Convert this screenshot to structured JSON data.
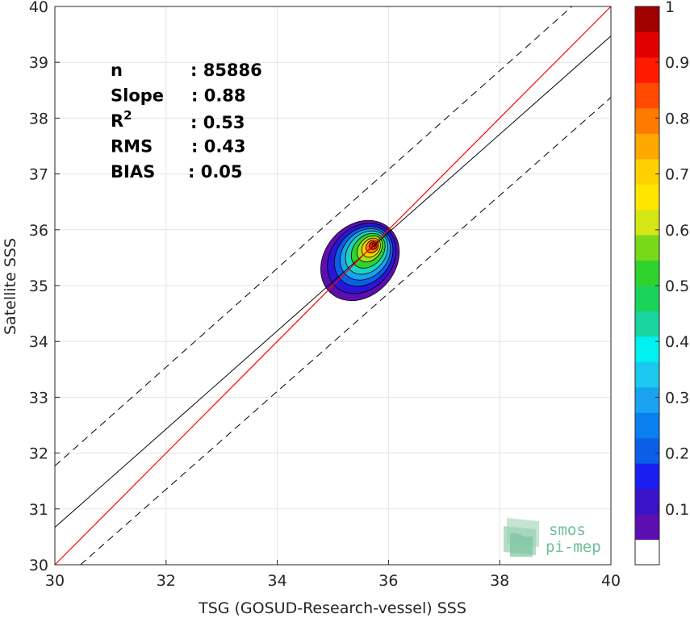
{
  "chart_data": {
    "type": "density-scatter",
    "xlabel": "TSG (GOSUD-Research-vessel) SSS",
    "ylabel": "Satellite SSS",
    "xlim": [
      30,
      40
    ],
    "ylim": [
      30,
      40
    ],
    "x_ticks": [
      "30",
      "32",
      "34",
      "36",
      "38",
      "40"
    ],
    "y_ticks": [
      "30",
      "31",
      "32",
      "33",
      "34",
      "35",
      "36",
      "37",
      "38",
      "39",
      "40"
    ],
    "grid": true,
    "stats": [
      {
        "label": "n",
        "value": ": 85886"
      },
      {
        "label": "Slope",
        "value": ": 0.88"
      },
      {
        "label": "R",
        "superscript": "2",
        "value": ": 0.53"
      },
      {
        "label": "RMS",
        "value": ": 0.43"
      },
      {
        "label": "BIAS",
        "value": ": 0.05"
      }
    ],
    "identity_line": {
      "color": "#ff0000",
      "from": [
        30,
        30
      ],
      "to": [
        40,
        40
      ]
    },
    "regression_line": {
      "color": "#000000",
      "from": [
        30,
        30.67
      ],
      "to": [
        40,
        39.47
      ]
    },
    "confidence_bounds": [
      {
        "style": "dashed",
        "from": [
          30,
          31.77
        ],
        "to": [
          39.3,
          40
        ]
      },
      {
        "style": "dashed",
        "from": [
          30.46,
          30
        ],
        "to": [
          40,
          38.37
        ]
      }
    ],
    "density_contours": {
      "center": [
        35.75,
        35.75
      ],
      "levels": [
        {
          "level": 0.05,
          "color": "#5b0fb0",
          "rx": 0.75,
          "ry": 0.55
        },
        {
          "level": 0.1,
          "color": "#2a14d8",
          "rx": 0.66,
          "ry": 0.48
        },
        {
          "level": 0.2,
          "color": "#0a5fe6",
          "rx": 0.56,
          "ry": 0.41
        },
        {
          "level": 0.3,
          "color": "#1aa3f0",
          "rx": 0.48,
          "ry": 0.35
        },
        {
          "level": 0.4,
          "color": "#1ad4c2",
          "rx": 0.41,
          "ry": 0.29
        },
        {
          "level": 0.5,
          "color": "#2ed32e",
          "rx": 0.33,
          "ry": 0.23
        },
        {
          "level": 0.6,
          "color": "#a7e214",
          "rx": 0.25,
          "ry": 0.17
        },
        {
          "level": 0.7,
          "color": "#ffd000",
          "rx": 0.18,
          "ry": 0.13
        },
        {
          "level": 0.8,
          "color": "#ff7a00",
          "rx": 0.12,
          "ry": 0.09
        },
        {
          "level": 0.9,
          "color": "#ff1a00",
          "rx": 0.07,
          "ry": 0.06
        },
        {
          "level": 1.0,
          "color": "#b00000",
          "rx": 0.03,
          "ry": 0.03
        }
      ]
    },
    "colorbar": {
      "range": [
        0,
        1
      ],
      "labels": [
        "1",
        "0.9",
        "0.8",
        "0.7",
        "0.6",
        "0.5",
        "0.4",
        "0.3",
        "0.2",
        "0.1"
      ],
      "label_values": [
        1,
        0.9,
        0.8,
        0.7,
        0.6,
        0.5,
        0.4,
        0.3,
        0.2,
        0.1
      ],
      "colors": [
        "#ffffff",
        "#5b0fb0",
        "#3a12c8",
        "#1a1ef0",
        "#0a5fe6",
        "#0a7ff0",
        "#1aa3f0",
        "#1ac8f0",
        "#00f0f0",
        "#1ad4a0",
        "#1ad45a",
        "#2ed32e",
        "#7ad81a",
        "#d4e614",
        "#ffe600",
        "#ffd000",
        "#ffa800",
        "#ff7a00",
        "#ff4a00",
        "#ff1a00",
        "#e00000",
        "#a00000"
      ]
    }
  },
  "logo": {
    "line1": "smos",
    "line2": "pi-mep"
  }
}
